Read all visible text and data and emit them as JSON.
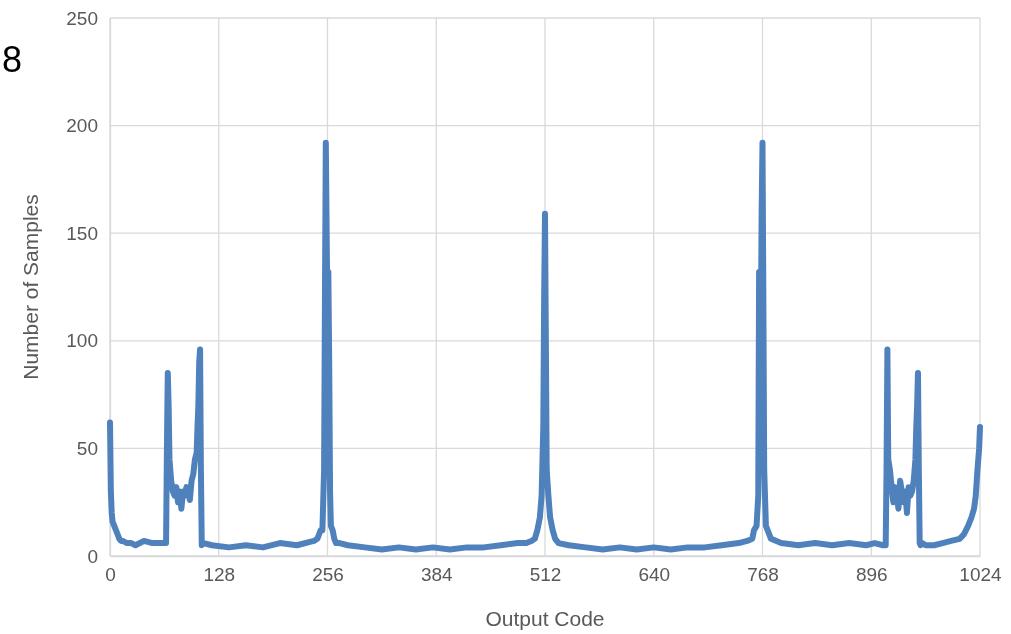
{
  "chart_data": {
    "type": "line",
    "xlabel": "Output Code",
    "ylabel": "Number of Samples",
    "annotations": [
      "8"
    ],
    "xlim": [
      0,
      1024
    ],
    "ylim": [
      0,
      250
    ],
    "xticks": [
      0,
      128,
      256,
      384,
      512,
      640,
      768,
      896,
      1024
    ],
    "yticks": [
      0,
      50,
      100,
      150,
      200,
      250
    ],
    "grid": true,
    "marker": "none",
    "line_style": "solid",
    "series": [
      {
        "color": "#4f81bd",
        "x": [
          0,
          1,
          2,
          3,
          5,
          7,
          9,
          11,
          13,
          15,
          20,
          25,
          30,
          40,
          50,
          60,
          66,
          67,
          68,
          69,
          70,
          71,
          72,
          74,
          76,
          78,
          80,
          82,
          84,
          86,
          88,
          90,
          92,
          94,
          96,
          98,
          100,
          102,
          103,
          104,
          105,
          106,
          107,
          108,
          110,
          120,
          140,
          160,
          180,
          200,
          220,
          240,
          244,
          246,
          248,
          250,
          252,
          253,
          254,
          255,
          256,
          257,
          258,
          259,
          260,
          262,
          264,
          266,
          270,
          280,
          300,
          320,
          340,
          360,
          380,
          400,
          420,
          440,
          460,
          480,
          490,
          496,
          500,
          503,
          506,
          508,
          510,
          511,
          512,
          513,
          514,
          516,
          518,
          521,
          524,
          528,
          540,
          560,
          580,
          600,
          620,
          640,
          660,
          680,
          700,
          720,
          740,
          750,
          756,
          758,
          761,
          763,
          764,
          765,
          766,
          767,
          768,
          769,
          770,
          772,
          774,
          778,
          790,
          810,
          830,
          850,
          870,
          890,
          900,
          910,
          913,
          914,
          915,
          916,
          918,
          920,
          922,
          924,
          926,
          928,
          930,
          932,
          934,
          936,
          938,
          940,
          942,
          944,
          946,
          947,
          948,
          949,
          950,
          951,
          952,
          953,
          954,
          956,
          960,
          970,
          980,
          990,
          1000,
          1005,
          1010,
          1014,
          1017,
          1019,
          1021,
          1023,
          1024
        ],
        "values": [
          62,
          30,
          20,
          16,
          14,
          12,
          10,
          8,
          7,
          7,
          6,
          6,
          5,
          7,
          6,
          6,
          6,
          50,
          85,
          70,
          45,
          40,
          35,
          30,
          28,
          32,
          25,
          30,
          22,
          30,
          28,
          32,
          30,
          26,
          35,
          38,
          45,
          48,
          60,
          70,
          90,
          96,
          40,
          5,
          6,
          5,
          4,
          5,
          4,
          6,
          5,
          7,
          8,
          10,
          12,
          12,
          40,
          120,
          192,
          150,
          110,
          132,
          90,
          30,
          14,
          12,
          8,
          6,
          6,
          5,
          4,
          3,
          4,
          3,
          4,
          3,
          4,
          4,
          5,
          6,
          6,
          7,
          8,
          12,
          18,
          28,
          60,
          120,
          159,
          100,
          40,
          28,
          18,
          12,
          8,
          6,
          5,
          4,
          3,
          4,
          3,
          4,
          3,
          4,
          4,
          5,
          6,
          7,
          8,
          12,
          14,
          28,
          132,
          60,
          100,
          160,
          192,
          120,
          40,
          14,
          12,
          8,
          6,
          5,
          6,
          5,
          6,
          5,
          6,
          5,
          5,
          40,
          96,
          45,
          40,
          32,
          25,
          32,
          28,
          22,
          35,
          30,
          25,
          30,
          20,
          32,
          28,
          30,
          35,
          40,
          45,
          60,
          70,
          85,
          40,
          6,
          5,
          6,
          5,
          5,
          6,
          7,
          8,
          10,
          14,
          18,
          22,
          28,
          40,
          50,
          60
        ]
      }
    ]
  }
}
